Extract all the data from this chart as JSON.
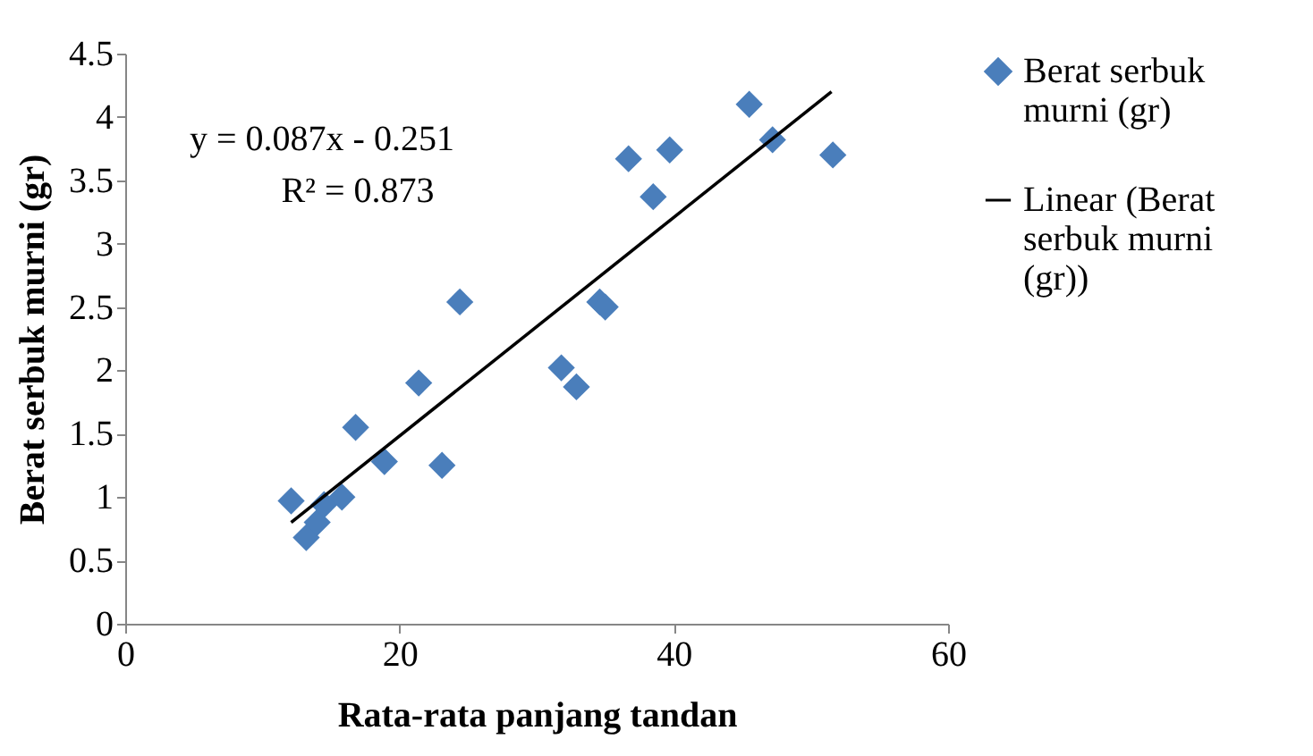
{
  "chart_data": {
    "type": "scatter",
    "xlabel": "Rata-rata panjang tandan",
    "ylabel": "Berat serbuk murni (gr)",
    "xlim": [
      0,
      60
    ],
    "xticks": [
      0,
      20,
      40,
      60
    ],
    "ylim": [
      0,
      4.5
    ],
    "yticks": [
      0,
      0.5,
      1,
      1.5,
      2,
      2.5,
      3,
      3.5,
      4,
      4.5
    ],
    "grid": false,
    "legend": "right",
    "marker": "diamond",
    "annotations": [
      "y = 0.087x - 0.251",
      "R² = 0.873"
    ],
    "series": [
      {
        "name": "Berat serbuk murni (gr)",
        "color": "#4a7ebb",
        "x": [
          12.1,
          13.2,
          14.0,
          14.5,
          15.8,
          16.8,
          18.9,
          21.4,
          23.1,
          24.4,
          31.8,
          32.9,
          34.6,
          35.0,
          36.7,
          38.5,
          39.7,
          45.5,
          47.2,
          51.6
        ],
        "values": [
          0.97,
          0.68,
          0.8,
          0.94,
          1.0,
          1.55,
          1.28,
          1.9,
          1.25,
          2.54,
          2.02,
          1.87,
          2.54,
          2.5,
          3.67,
          3.37,
          3.74,
          4.1,
          3.82,
          3.7
        ]
      },
      {
        "name": "Linear (Berat serbuk murni (gr))",
        "type": "line",
        "color": "#000000",
        "line_style": "solid",
        "marker": "none",
        "x": [
          12.1,
          51.5
        ],
        "values": [
          0.8,
          4.2
        ]
      }
    ]
  }
}
